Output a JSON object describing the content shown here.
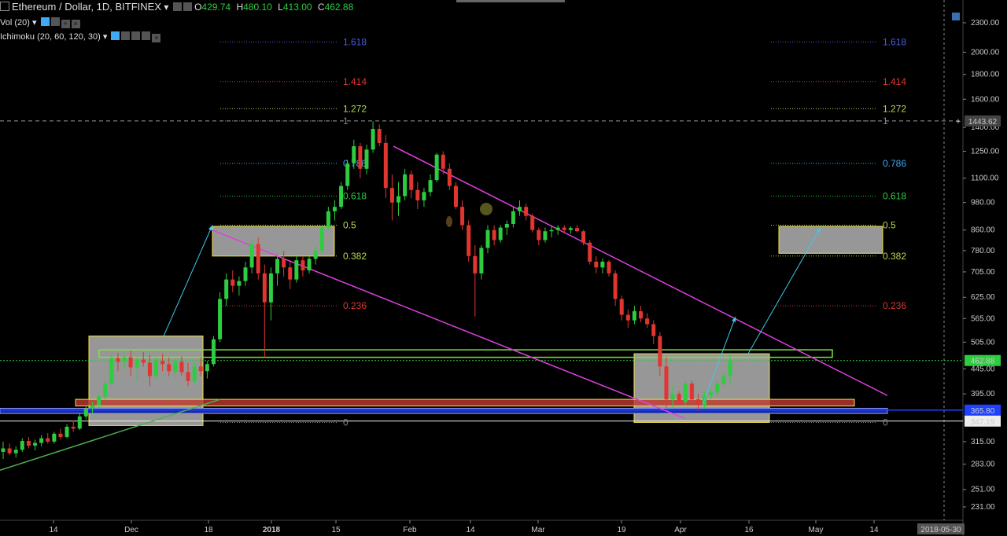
{
  "header": {
    "symbol": "Ethereum / Dollar, 1D, BITFINEX",
    "o_label": "O",
    "o": "429.74",
    "h_label": "H",
    "h": "480.10",
    "l_label": "L",
    "l": "413.00",
    "c_label": "C",
    "c": "462.88",
    "vol": "Vol (20)",
    "ichimoku": "Ichimoku (20, 60, 120, 30)"
  },
  "chart_data": {
    "type": "candlestick",
    "symbol": "ETH/USD",
    "exchange": "BITFINEX",
    "timeframe": "1D",
    "y_scale": "log",
    "ylim": [
      200,
      2450
    ],
    "y_ticks": [
      "2300.00",
      "2000.00",
      "1800.00",
      "1600.00",
      "1400.00",
      "1250.00",
      "1100.00",
      "980.00",
      "860.00",
      "780.00",
      "705.00",
      "625.00",
      "565.00",
      "505.00",
      "445.00",
      "395.00",
      "315.00",
      "283.00",
      "251.00",
      "231.00"
    ],
    "x_ticks": [
      "14",
      "Dec",
      "18",
      "2018",
      "15",
      "Feb",
      "14",
      "Mar",
      "19",
      "Apr",
      "16",
      "May",
      "14"
    ],
    "x_range": [
      "2017-11-01",
      "2018-05-30"
    ],
    "crosshair_date": "2018-05-30",
    "price_tags": {
      "crosshair": "1443.62",
      "last": "462.88",
      "blue_line": "365.80",
      "white_line": "347.19"
    },
    "candles": [
      {
        "o": 300,
        "h": 315,
        "l": 290,
        "c": 305
      },
      {
        "o": 305,
        "h": 312,
        "l": 295,
        "c": 298
      },
      {
        "o": 298,
        "h": 308,
        "l": 292,
        "c": 303
      },
      {
        "o": 303,
        "h": 320,
        "l": 300,
        "c": 316
      },
      {
        "o": 316,
        "h": 322,
        "l": 305,
        "c": 309
      },
      {
        "o": 309,
        "h": 318,
        "l": 302,
        "c": 313
      },
      {
        "o": 313,
        "h": 325,
        "l": 308,
        "c": 320
      },
      {
        "o": 320,
        "h": 328,
        "l": 312,
        "c": 315
      },
      {
        "o": 315,
        "h": 330,
        "l": 312,
        "c": 327
      },
      {
        "o": 327,
        "h": 335,
        "l": 318,
        "c": 322
      },
      {
        "o": 322,
        "h": 342,
        "l": 320,
        "c": 338
      },
      {
        "o": 338,
        "h": 348,
        "l": 330,
        "c": 335
      },
      {
        "o": 335,
        "h": 360,
        "l": 333,
        "c": 355
      },
      {
        "o": 355,
        "h": 372,
        "l": 350,
        "c": 368
      },
      {
        "o": 368,
        "h": 380,
        "l": 360,
        "c": 374
      },
      {
        "o": 374,
        "h": 395,
        "l": 370,
        "c": 390
      },
      {
        "o": 390,
        "h": 420,
        "l": 385,
        "c": 415
      },
      {
        "o": 415,
        "h": 475,
        "l": 410,
        "c": 468
      },
      {
        "o": 468,
        "h": 480,
        "l": 440,
        "c": 460
      },
      {
        "o": 460,
        "h": 478,
        "l": 445,
        "c": 470
      },
      {
        "o": 470,
        "h": 485,
        "l": 430,
        "c": 448
      },
      {
        "o": 448,
        "h": 470,
        "l": 420,
        "c": 465
      },
      {
        "o": 465,
        "h": 482,
        "l": 450,
        "c": 458
      },
      {
        "o": 458,
        "h": 475,
        "l": 410,
        "c": 430
      },
      {
        "o": 430,
        "h": 470,
        "l": 425,
        "c": 462
      },
      {
        "o": 462,
        "h": 478,
        "l": 440,
        "c": 455
      },
      {
        "o": 455,
        "h": 470,
        "l": 430,
        "c": 440
      },
      {
        "o": 440,
        "h": 468,
        "l": 425,
        "c": 460
      },
      {
        "o": 460,
        "h": 472,
        "l": 430,
        "c": 438
      },
      {
        "o": 438,
        "h": 458,
        "l": 410,
        "c": 420
      },
      {
        "o": 420,
        "h": 460,
        "l": 415,
        "c": 450
      },
      {
        "o": 450,
        "h": 470,
        "l": 430,
        "c": 440
      },
      {
        "o": 440,
        "h": 462,
        "l": 425,
        "c": 455
      },
      {
        "o": 455,
        "h": 520,
        "l": 450,
        "c": 512
      },
      {
        "o": 512,
        "h": 640,
        "l": 505,
        "c": 620
      },
      {
        "o": 620,
        "h": 700,
        "l": 600,
        "c": 680
      },
      {
        "o": 680,
        "h": 710,
        "l": 640,
        "c": 660
      },
      {
        "o": 660,
        "h": 690,
        "l": 630,
        "c": 675
      },
      {
        "o": 675,
        "h": 740,
        "l": 660,
        "c": 720
      },
      {
        "o": 720,
        "h": 820,
        "l": 700,
        "c": 805
      },
      {
        "o": 805,
        "h": 830,
        "l": 680,
        "c": 700
      },
      {
        "o": 700,
        "h": 730,
        "l": 470,
        "c": 610
      },
      {
        "o": 610,
        "h": 720,
        "l": 560,
        "c": 700
      },
      {
        "o": 700,
        "h": 770,
        "l": 660,
        "c": 750
      },
      {
        "o": 750,
        "h": 780,
        "l": 690,
        "c": 720
      },
      {
        "o": 720,
        "h": 740,
        "l": 650,
        "c": 680
      },
      {
        "o": 680,
        "h": 760,
        "l": 670,
        "c": 745
      },
      {
        "o": 745,
        "h": 760,
        "l": 690,
        "c": 710
      },
      {
        "o": 710,
        "h": 760,
        "l": 700,
        "c": 750
      },
      {
        "o": 750,
        "h": 800,
        "l": 730,
        "c": 780
      },
      {
        "o": 780,
        "h": 880,
        "l": 770,
        "c": 870
      },
      {
        "o": 870,
        "h": 960,
        "l": 860,
        "c": 940
      },
      {
        "o": 940,
        "h": 990,
        "l": 900,
        "c": 960
      },
      {
        "o": 960,
        "h": 1080,
        "l": 950,
        "c": 1060
      },
      {
        "o": 1060,
        "h": 1200,
        "l": 1040,
        "c": 1180
      },
      {
        "o": 1180,
        "h": 1320,
        "l": 1150,
        "c": 1280
      },
      {
        "o": 1280,
        "h": 1300,
        "l": 1100,
        "c": 1150
      },
      {
        "o": 1150,
        "h": 1290,
        "l": 1120,
        "c": 1260
      },
      {
        "o": 1260,
        "h": 1440,
        "l": 1240,
        "c": 1390
      },
      {
        "o": 1390,
        "h": 1420,
        "l": 1280,
        "c": 1300
      },
      {
        "o": 1300,
        "h": 1350,
        "l": 1000,
        "c": 1050
      },
      {
        "o": 1050,
        "h": 1120,
        "l": 900,
        "c": 980
      },
      {
        "o": 980,
        "h": 1080,
        "l": 920,
        "c": 1010
      },
      {
        "o": 1010,
        "h": 1150,
        "l": 990,
        "c": 1120
      },
      {
        "o": 1120,
        "h": 1140,
        "l": 1000,
        "c": 1040
      },
      {
        "o": 1040,
        "h": 1080,
        "l": 950,
        "c": 990
      },
      {
        "o": 990,
        "h": 1050,
        "l": 960,
        "c": 1030
      },
      {
        "o": 1030,
        "h": 1120,
        "l": 1010,
        "c": 1090
      },
      {
        "o": 1090,
        "h": 1240,
        "l": 1080,
        "c": 1230
      },
      {
        "o": 1230,
        "h": 1250,
        "l": 1120,
        "c": 1150
      },
      {
        "o": 1150,
        "h": 1180,
        "l": 1040,
        "c": 1060
      },
      {
        "o": 1060,
        "h": 1080,
        "l": 950,
        "c": 960
      },
      {
        "o": 960,
        "h": 990,
        "l": 860,
        "c": 880
      },
      {
        "o": 880,
        "h": 900,
        "l": 740,
        "c": 760
      },
      {
        "o": 760,
        "h": 800,
        "l": 570,
        "c": 700
      },
      {
        "o": 700,
        "h": 800,
        "l": 680,
        "c": 790
      },
      {
        "o": 790,
        "h": 880,
        "l": 770,
        "c": 860
      },
      {
        "o": 860,
        "h": 880,
        "l": 800,
        "c": 820
      },
      {
        "o": 820,
        "h": 880,
        "l": 810,
        "c": 870
      },
      {
        "o": 870,
        "h": 900,
        "l": 840,
        "c": 885
      },
      {
        "o": 885,
        "h": 960,
        "l": 870,
        "c": 940
      },
      {
        "o": 940,
        "h": 990,
        "l": 920,
        "c": 960
      },
      {
        "o": 960,
        "h": 975,
        "l": 900,
        "c": 920
      },
      {
        "o": 920,
        "h": 930,
        "l": 850,
        "c": 860
      },
      {
        "o": 860,
        "h": 870,
        "l": 800,
        "c": 820
      },
      {
        "o": 820,
        "h": 870,
        "l": 810,
        "c": 855
      },
      {
        "o": 855,
        "h": 880,
        "l": 830,
        "c": 860
      },
      {
        "o": 860,
        "h": 880,
        "l": 840,
        "c": 870
      },
      {
        "o": 870,
        "h": 880,
        "l": 850,
        "c": 860
      },
      {
        "o": 860,
        "h": 875,
        "l": 845,
        "c": 868
      },
      {
        "o": 868,
        "h": 880,
        "l": 850,
        "c": 855
      },
      {
        "o": 855,
        "h": 860,
        "l": 800,
        "c": 810
      },
      {
        "o": 810,
        "h": 820,
        "l": 730,
        "c": 740
      },
      {
        "o": 740,
        "h": 760,
        "l": 700,
        "c": 720
      },
      {
        "o": 720,
        "h": 750,
        "l": 700,
        "c": 740
      },
      {
        "o": 740,
        "h": 745,
        "l": 690,
        "c": 700
      },
      {
        "o": 700,
        "h": 710,
        "l": 600,
        "c": 620
      },
      {
        "o": 620,
        "h": 630,
        "l": 560,
        "c": 575
      },
      {
        "o": 575,
        "h": 590,
        "l": 540,
        "c": 560
      },
      {
        "o": 560,
        "h": 600,
        "l": 550,
        "c": 585
      },
      {
        "o": 585,
        "h": 600,
        "l": 555,
        "c": 565
      },
      {
        "o": 565,
        "h": 580,
        "l": 540,
        "c": 550
      },
      {
        "o": 550,
        "h": 560,
        "l": 500,
        "c": 520
      },
      {
        "o": 520,
        "h": 530,
        "l": 430,
        "c": 450
      },
      {
        "o": 450,
        "h": 470,
        "l": 370,
        "c": 385
      },
      {
        "o": 385,
        "h": 410,
        "l": 370,
        "c": 395
      },
      {
        "o": 395,
        "h": 400,
        "l": 375,
        "c": 380
      },
      {
        "o": 380,
        "h": 420,
        "l": 375,
        "c": 415
      },
      {
        "o": 415,
        "h": 420,
        "l": 380,
        "c": 385
      },
      {
        "o": 385,
        "h": 395,
        "l": 365,
        "c": 375
      },
      {
        "o": 375,
        "h": 400,
        "l": 368,
        "c": 392
      },
      {
        "o": 392,
        "h": 405,
        "l": 385,
        "c": 398
      },
      {
        "o": 398,
        "h": 420,
        "l": 392,
        "c": 415
      },
      {
        "o": 415,
        "h": 440,
        "l": 408,
        "c": 430
      },
      {
        "o": 430,
        "h": 480,
        "l": 413,
        "c": 463
      }
    ],
    "fib_left": [
      {
        "label": "1.618",
        "color": "#4a5be8"
      },
      {
        "label": "1.414",
        "color": "#e0362f"
      },
      {
        "label": "1.272",
        "color": "#b7d94f"
      },
      {
        "label": "1",
        "color": "#888888"
      },
      {
        "label": "0.786",
        "color": "#3fa9f5"
      },
      {
        "label": "0.618",
        "color": "#2ecc40"
      },
      {
        "label": "0.5",
        "color": "#b7d94f"
      },
      {
        "label": "0.382",
        "color": "#b7d94f"
      },
      {
        "label": "0.236",
        "color": "#e0362f"
      },
      {
        "label": "0",
        "color": "#888888"
      }
    ],
    "fib_right": [
      {
        "label": "1.618",
        "color": "#4a5be8"
      },
      {
        "label": "1.414",
        "color": "#e0362f"
      },
      {
        "label": "1.272",
        "color": "#b7d94f"
      },
      {
        "label": "1",
        "color": "#888888"
      },
      {
        "label": "0.786",
        "color": "#3fa9f5"
      },
      {
        "label": "0.618",
        "color": "#2ecc40"
      },
      {
        "label": "0.5",
        "color": "#b7d94f"
      },
      {
        "label": "0.382",
        "color": "#b7d94f"
      },
      {
        "label": "0.236",
        "color": "#e0362f"
      },
      {
        "label": "0",
        "color": "#888888"
      }
    ],
    "grid": false,
    "colors": {
      "up": "#2ecc40",
      "down": "#e0362f",
      "channel": "#e040e0",
      "trend": "#4caf50",
      "box_fill": "#bdbdbd",
      "box_border": "#f0e04a"
    }
  }
}
